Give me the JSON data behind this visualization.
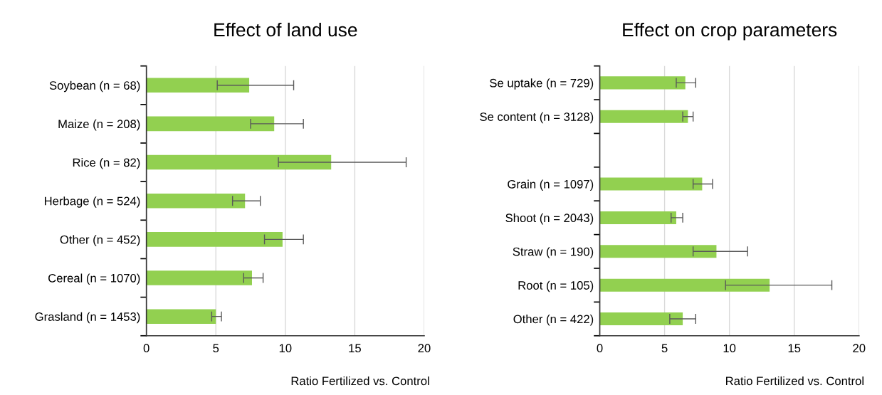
{
  "chart_data": [
    {
      "type": "bar",
      "orientation": "horizontal",
      "title": "Effect of land use",
      "xlabel": "Ratio Fertilized vs. Control",
      "categories": [
        "Soybean (n = 68)",
        "Maize (n = 208)",
        "Rice (n = 82)",
        "Herbage (n = 524)",
        "Other (n = 452)",
        "Cereal (n = 1070)",
        "Grasland (n = 1453)"
      ],
      "values": [
        7.4,
        9.2,
        13.3,
        7.1,
        9.8,
        7.6,
        5.0
      ],
      "errors": [
        [
          5.1,
          10.6
        ],
        [
          7.5,
          11.3
        ],
        [
          9.5,
          18.7
        ],
        [
          6.2,
          8.2
        ],
        [
          8.5,
          11.3
        ],
        [
          7.0,
          8.4
        ],
        [
          4.7,
          5.4
        ]
      ],
      "color": "#92d050",
      "xlim": [
        0,
        20
      ],
      "xticks": [
        0,
        5,
        10,
        15,
        20
      ],
      "grid": "x"
    },
    {
      "type": "bar",
      "orientation": "horizontal",
      "title": "Effect on crop parameters",
      "xlabel": "Ratio Fertilized vs. Control",
      "categories": [
        "Se uptake (n = 729)",
        "Se content (n = 3128)",
        null,
        "Grain (n = 1097)",
        "Shoot (n = 2043)",
        "Straw (n = 190)",
        "Root (n = 105)",
        "Other (n = 422)"
      ],
      "values": [
        6.6,
        6.8,
        null,
        7.9,
        5.9,
        9.0,
        13.1,
        6.4
      ],
      "errors": [
        [
          5.9,
          7.4
        ],
        [
          6.4,
          7.2
        ],
        null,
        [
          7.2,
          8.7
        ],
        [
          5.5,
          6.4
        ],
        [
          7.2,
          11.4
        ],
        [
          9.7,
          17.9
        ],
        [
          5.4,
          7.4
        ]
      ],
      "color": "#92d050",
      "xlim": [
        0,
        20
      ],
      "xticks": [
        0,
        5,
        10,
        15,
        20
      ],
      "grid": "x"
    }
  ]
}
